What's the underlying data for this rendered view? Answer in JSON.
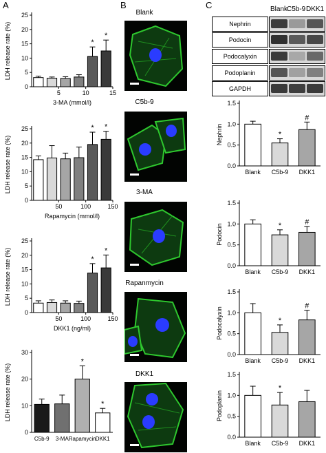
{
  "panels": {
    "a": "A",
    "b": "B",
    "c": "C"
  },
  "column_b": {
    "titles": [
      "Blank",
      "C5b-9",
      "3-MA",
      "Rapanmycin",
      "DKK1"
    ]
  },
  "column_c_blot": {
    "lanes": [
      "Blank",
      "C5b-9",
      "DKK1"
    ],
    "rows": [
      "Nephrin",
      "Podocin",
      "Podocalyxin",
      "Podoplanin",
      "GAPDH"
    ]
  },
  "colors": {
    "white": "#ffffff",
    "light": "#d9d9d9",
    "mid": "#a6a6a6",
    "dark": "#707070",
    "darker": "#404040",
    "black": "#1a1a1a",
    "actin": "#2ec82e",
    "nucleus": "#2a3cff"
  },
  "chart_data": [
    {
      "id": "a1",
      "type": "bar",
      "ylabel": "LDH release rate (%)",
      "xlabel": "3-MA (mmol/l)",
      "ylim": [
        0,
        25
      ],
      "yticks": [
        0,
        5,
        10,
        15,
        20,
        25
      ],
      "tick_labels": [
        "5",
        "10",
        "15"
      ],
      "tick_at": [
        1,
        3,
        5
      ],
      "bars": [
        {
          "value": 3.2,
          "err": 0.5,
          "color": "#ffffff",
          "sig": ""
        },
        {
          "value": 3.0,
          "err": 0.4,
          "color": "#d9d9d9",
          "sig": ""
        },
        {
          "value": 2.9,
          "err": 0.6,
          "color": "#a6a6a6",
          "sig": ""
        },
        {
          "value": 3.4,
          "err": 0.8,
          "color": "#808080",
          "sig": ""
        },
        {
          "value": 10.6,
          "err": 3.3,
          "color": "#5a5a5a",
          "sig": "*"
        },
        {
          "value": 12.5,
          "err": 3.8,
          "color": "#3a3a3a",
          "sig": "*"
        }
      ]
    },
    {
      "id": "a2",
      "type": "bar",
      "ylabel": "LDH release rate (%)",
      "xlabel": "Rapamycin (mmol/l)",
      "ylim": [
        0,
        25
      ],
      "yticks": [
        0,
        5,
        10,
        15,
        20,
        25
      ],
      "tick_labels": [
        "50",
        "100",
        "150"
      ],
      "tick_at": [
        1,
        3,
        5
      ],
      "bars": [
        {
          "value": 14.2,
          "err": 1.3,
          "color": "#ffffff",
          "sig": ""
        },
        {
          "value": 14.8,
          "err": 4.3,
          "color": "#d9d9d9",
          "sig": ""
        },
        {
          "value": 14.5,
          "err": 2.0,
          "color": "#a6a6a6",
          "sig": ""
        },
        {
          "value": 14.9,
          "err": 3.7,
          "color": "#808080",
          "sig": ""
        },
        {
          "value": 19.5,
          "err": 4.3,
          "color": "#5a5a5a",
          "sig": "*"
        },
        {
          "value": 21.3,
          "err": 2.8,
          "color": "#3a3a3a",
          "sig": "*"
        }
      ]
    },
    {
      "id": "a3",
      "type": "bar",
      "ylabel": "LDH release rate (%)",
      "xlabel": "DKK1 (ng/ml)",
      "ylim": [
        0,
        25
      ],
      "yticks": [
        0,
        5,
        10,
        15,
        20,
        25
      ],
      "tick_labels": [
        "50",
        "100",
        "150"
      ],
      "tick_at": [
        1,
        3,
        5
      ],
      "bars": [
        {
          "value": 3.3,
          "err": 0.8,
          "color": "#ffffff",
          "sig": ""
        },
        {
          "value": 3.5,
          "err": 0.9,
          "color": "#d9d9d9",
          "sig": ""
        },
        {
          "value": 3.3,
          "err": 0.8,
          "color": "#a6a6a6",
          "sig": ""
        },
        {
          "value": 3.2,
          "err": 0.8,
          "color": "#808080",
          "sig": ""
        },
        {
          "value": 13.8,
          "err": 3.3,
          "color": "#5a5a5a",
          "sig": "*"
        },
        {
          "value": 15.6,
          "err": 4.5,
          "color": "#3a3a3a",
          "sig": "*"
        }
      ]
    },
    {
      "id": "a4",
      "type": "bar",
      "ylabel": "LDH release rate (%)",
      "xlabel": "",
      "ylim": [
        0,
        30
      ],
      "yticks": [
        0,
        10,
        20,
        30
      ],
      "tick_labels": [
        "C5b-9",
        "3-MA",
        "Rapamycin",
        "DKK1"
      ],
      "tick_at": [
        0,
        1,
        2,
        3
      ],
      "bars": [
        {
          "value": 10.5,
          "err": 2.0,
          "color": "#1a1a1a",
          "sig": ""
        },
        {
          "value": 10.7,
          "err": 3.3,
          "color": "#707070",
          "sig": ""
        },
        {
          "value": 20.0,
          "err": 5.0,
          "color": "#b0b0b0",
          "sig": "*"
        },
        {
          "value": 7.3,
          "err": 1.7,
          "color": "#ffffff",
          "sig": "*"
        }
      ]
    },
    {
      "id": "c1",
      "type": "bar",
      "ylabel": "Nephrin",
      "xlabel": "",
      "ylim": [
        0,
        1.5
      ],
      "yticks": [
        0.0,
        0.5,
        1.0,
        1.5
      ],
      "tick_labels": [
        "Blank",
        "C5b-9",
        "DKK1"
      ],
      "tick_at": [
        0,
        1,
        2
      ],
      "bars": [
        {
          "value": 1.0,
          "err": 0.07,
          "color": "#ffffff",
          "sig": ""
        },
        {
          "value": 0.55,
          "err": 0.1,
          "color": "#d9d9d9",
          "sig": "*"
        },
        {
          "value": 0.87,
          "err": 0.18,
          "color": "#a6a6a6",
          "sig": "#"
        }
      ]
    },
    {
      "id": "c2",
      "type": "bar",
      "ylabel": "Podocin",
      "xlabel": "",
      "ylim": [
        0,
        1.5
      ],
      "yticks": [
        0.0,
        0.5,
        1.0,
        1.5
      ],
      "tick_labels": [
        "Blank",
        "C5b-9",
        "DKK1"
      ],
      "tick_at": [
        0,
        1,
        2
      ],
      "bars": [
        {
          "value": 1.0,
          "err": 0.1,
          "color": "#ffffff",
          "sig": ""
        },
        {
          "value": 0.74,
          "err": 0.12,
          "color": "#d9d9d9",
          "sig": "*"
        },
        {
          "value": 0.8,
          "err": 0.14,
          "color": "#a6a6a6",
          "sig": "#"
        }
      ]
    },
    {
      "id": "c3",
      "type": "bar",
      "ylabel": "Podocalyxin",
      "xlabel": "",
      "ylim": [
        0,
        1.5
      ],
      "yticks": [
        0.0,
        0.5,
        1.0,
        1.5
      ],
      "tick_labels": [
        "Blank",
        "C5b-9",
        "DKK1"
      ],
      "tick_at": [
        0,
        1,
        2
      ],
      "bars": [
        {
          "value": 1.0,
          "err": 0.22,
          "color": "#ffffff",
          "sig": ""
        },
        {
          "value": 0.53,
          "err": 0.18,
          "color": "#d9d9d9",
          "sig": "*"
        },
        {
          "value": 0.83,
          "err": 0.23,
          "color": "#a6a6a6",
          "sig": "#"
        }
      ]
    },
    {
      "id": "c4",
      "type": "bar",
      "ylabel": "Podoplanin",
      "xlabel": "",
      "ylim": [
        0,
        1.5
      ],
      "yticks": [
        0.0,
        0.5,
        1.0,
        1.5
      ],
      "tick_labels": [
        "Blank",
        "C5b-9",
        "DKK1"
      ],
      "tick_at": [
        0,
        1,
        2
      ],
      "bars": [
        {
          "value": 1.0,
          "err": 0.22,
          "color": "#ffffff",
          "sig": ""
        },
        {
          "value": 0.77,
          "err": 0.3,
          "color": "#d9d9d9",
          "sig": "*"
        },
        {
          "value": 0.85,
          "err": 0.27,
          "color": "#a6a6a6",
          "sig": ""
        }
      ]
    }
  ]
}
